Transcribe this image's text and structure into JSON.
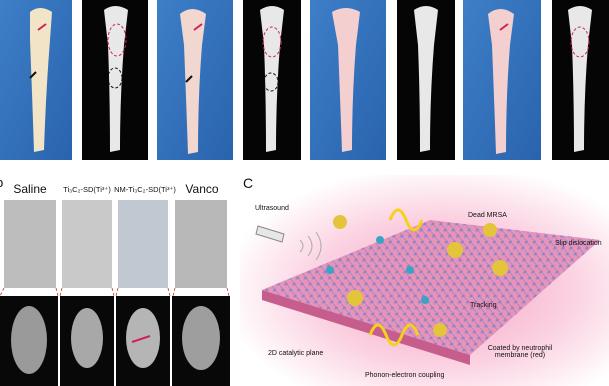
{
  "panel_b": {
    "label": "b",
    "columns": [
      "Saline",
      "Ti₃C₂-SD(Ti³⁺)",
      "NM-Ti₃C₂-SD(Ti³⁺)",
      "Vanco"
    ]
  },
  "panel_c": {
    "label": "C",
    "annotations": [
      "Ultrasound",
      "Dead MRSA",
      "Slip dislocation",
      "Tracking",
      "2D catalytic plane",
      "Coated by neutrophil membrane (red)",
      "Phonon-electron coupling"
    ]
  }
}
